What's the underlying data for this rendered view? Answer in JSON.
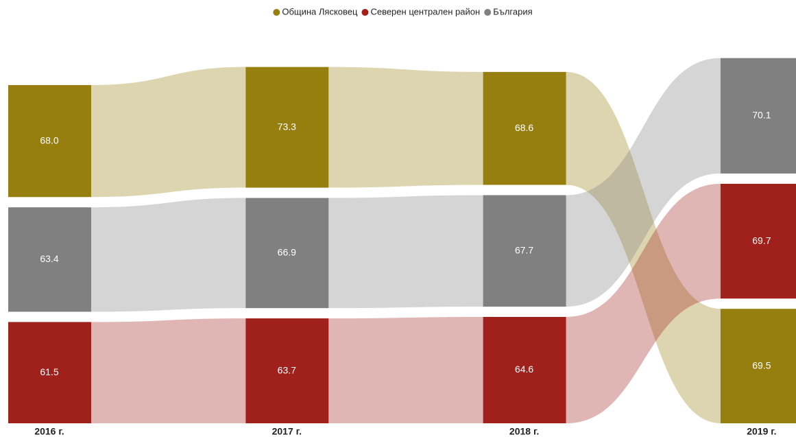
{
  "chart_data": {
    "type": "ribbon",
    "categories": [
      "2016 г.",
      "2017 г.",
      "2018 г.",
      "2019 г."
    ],
    "series": [
      {
        "name": "Община Лясковец",
        "color": "#977f0f",
        "values": [
          68.0,
          73.3,
          68.6,
          69.5
        ],
        "value_labels": [
          "68.0",
          "73.3",
          "68.6",
          "69.5"
        ]
      },
      {
        "name": "Северен централен район",
        "color": "#a0201b",
        "values": [
          61.5,
          63.7,
          64.6,
          69.7
        ],
        "value_labels": [
          "61.5",
          "63.7",
          "64.6",
          "69.7"
        ]
      },
      {
        "name": "България",
        "color": "#808080",
        "values": [
          63.4,
          66.9,
          67.7,
          70.1
        ],
        "value_labels": [
          "63.4",
          "66.9",
          "67.7",
          "70.1"
        ]
      }
    ],
    "legend": "top"
  }
}
